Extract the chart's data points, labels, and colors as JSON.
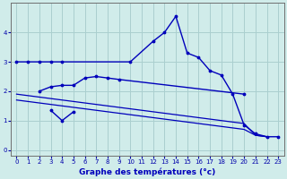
{
  "xlabel": "Graphe des températures (°c)",
  "background_color": "#d0ecea",
  "grid_color": "#aacfcf",
  "line_color": "#0000bb",
  "xlim": [
    -0.5,
    23.5
  ],
  "ylim": [
    -0.2,
    5.0
  ],
  "x_ticks": [
    0,
    1,
    2,
    3,
    4,
    5,
    6,
    7,
    8,
    9,
    10,
    11,
    12,
    13,
    14,
    15,
    16,
    17,
    18,
    19,
    20,
    21,
    22,
    23
  ],
  "y_ticks": [
    0,
    1,
    2,
    3,
    4
  ],
  "series1_x": [
    0,
    1,
    2,
    3,
    4,
    10,
    12,
    13,
    14,
    15,
    16,
    17,
    18,
    19,
    20,
    21,
    22,
    23
  ],
  "series1_y": [
    3.0,
    3.0,
    3.0,
    3.0,
    3.0,
    3.0,
    3.7,
    4.0,
    4.55,
    3.3,
    3.15,
    2.7,
    2.55,
    1.9,
    0.85,
    0.55,
    0.45,
    0.45
  ],
  "series2_x": [
    2,
    3,
    4,
    5,
    6,
    7,
    8,
    9,
    20
  ],
  "series2_y": [
    2.0,
    2.15,
    2.2,
    2.2,
    2.45,
    2.5,
    2.45,
    2.4,
    1.9
  ],
  "series3_x": [
    3,
    4,
    5
  ],
  "series3_y": [
    1.35,
    1.0,
    1.3
  ],
  "series4_x": [
    0,
    1,
    2,
    3,
    4,
    5,
    6,
    7,
    8,
    9,
    10,
    11,
    12,
    13,
    14,
    15,
    16,
    17,
    18,
    19,
    20,
    21,
    22
  ],
  "series4_y": [
    1.9,
    1.85,
    1.8,
    1.75,
    1.7,
    1.65,
    1.6,
    1.55,
    1.5,
    1.45,
    1.4,
    1.35,
    1.3,
    1.25,
    1.2,
    1.15,
    1.1,
    1.05,
    1.0,
    0.95,
    0.9,
    0.5,
    0.45
  ],
  "series5_x": [
    0,
    1,
    2,
    3,
    4,
    5,
    6,
    7,
    8,
    9,
    10,
    11,
    12,
    13,
    14,
    15,
    16,
    17,
    18,
    19,
    20,
    21,
    22
  ],
  "series5_y": [
    1.7,
    1.65,
    1.6,
    1.55,
    1.5,
    1.45,
    1.4,
    1.35,
    1.3,
    1.25,
    1.2,
    1.15,
    1.1,
    1.05,
    1.0,
    0.95,
    0.9,
    0.85,
    0.8,
    0.75,
    0.7,
    0.5,
    0.45
  ]
}
